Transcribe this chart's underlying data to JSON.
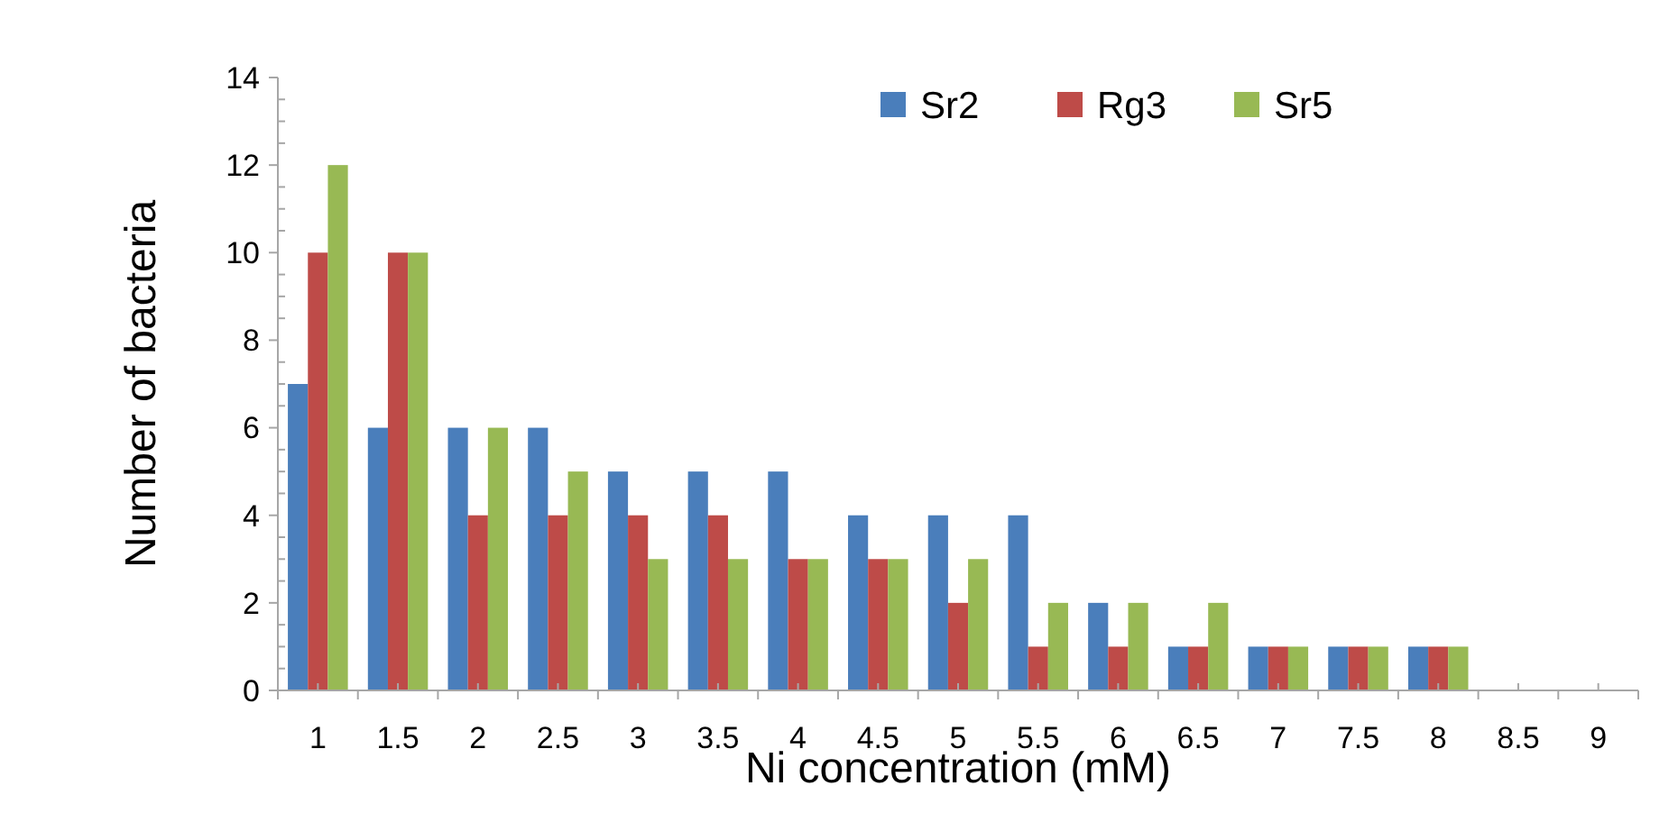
{
  "chart_data": {
    "type": "bar",
    "xlabel": "Ni concentration (mM)",
    "ylabel": "Number of bacteria",
    "categories": [
      "1",
      "1.5",
      "2",
      "2.5",
      "3",
      "3.5",
      "4",
      "4.5",
      "5",
      "5.5",
      "6",
      "6.5",
      "7",
      "7.5",
      "8",
      "8.5",
      "9"
    ],
    "series": [
      {
        "name": "Sr2",
        "color": "#4a7ebb",
        "values": [
          7,
          6,
          6,
          6,
          5,
          5,
          5,
          4,
          4,
          4,
          2,
          1,
          1,
          1,
          1,
          0,
          0
        ]
      },
      {
        "name": "Rg3",
        "color": "#be4b48",
        "values": [
          10,
          10,
          4,
          4,
          4,
          4,
          3,
          3,
          2,
          1,
          1,
          1,
          1,
          1,
          1,
          0,
          0
        ]
      },
      {
        "name": "Sr5",
        "color": "#98b954",
        "values": [
          12,
          10,
          6,
          5,
          3,
          3,
          3,
          3,
          3,
          2,
          2,
          2,
          1,
          1,
          1,
          0,
          0
        ]
      }
    ],
    "ylim": [
      0,
      14
    ],
    "yticks": [
      0,
      2,
      4,
      6,
      8,
      10,
      12,
      14
    ],
    "grid": false,
    "legend": "top right"
  }
}
